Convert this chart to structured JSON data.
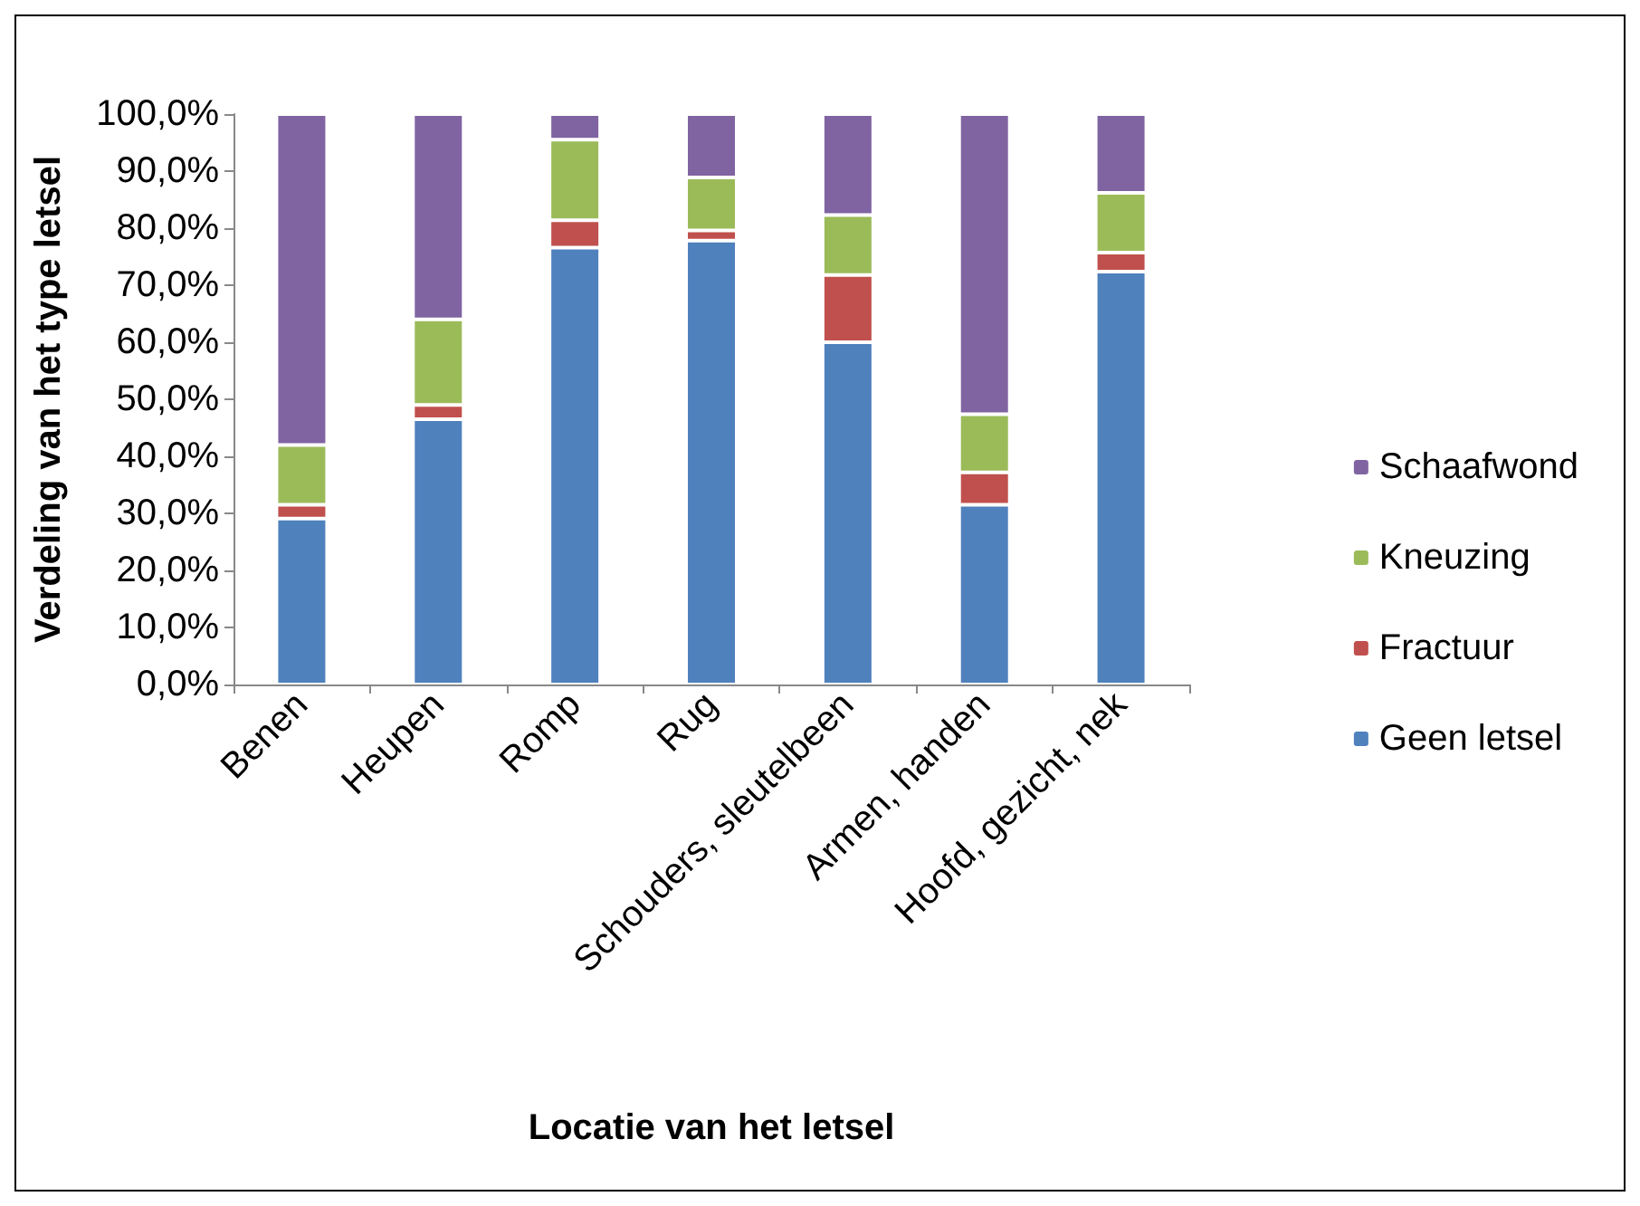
{
  "chart_data": {
    "type": "bar",
    "stacked": true,
    "xlabel": "Locatie van het letsel",
    "ylabel": "Verdeling van het type letsel",
    "categories": [
      "Benen",
      "Heupen",
      "Romp",
      "Rug",
      "Schouders, sleutelbeen",
      "Armen, handen",
      "Hoofd, gezicht, nek"
    ],
    "series": [
      {
        "name": "Geen letsel",
        "color": "#4f81bd",
        "values": [
          29.1,
          46.5,
          76.6,
          77.8,
          60,
          31.5,
          72.4
        ]
      },
      {
        "name": "Fractuur",
        "color": "#c0504d",
        "values": [
          2.4,
          2.5,
          4.8,
          1.8,
          11.8,
          5.7,
          3.3
        ]
      },
      {
        "name": "Kneuzing",
        "color": "#9bbb59",
        "values": [
          10.5,
          15,
          14.1,
          9.3,
          10.5,
          10.2,
          10.5
        ]
      },
      {
        "name": "Schaafwond",
        "color": "#8064a2",
        "values": [
          58,
          36,
          4.5,
          11.1,
          17.7,
          52.6,
          13.8
        ]
      }
    ],
    "ylim": [
      0,
      100
    ],
    "yticks": [
      {
        "value": 0,
        "label": "0,0%"
      },
      {
        "value": 10,
        "label": "10,0%"
      },
      {
        "value": 20,
        "label": "20,0%"
      },
      {
        "value": 30,
        "label": "30,0%"
      },
      {
        "value": 40,
        "label": "40,0%"
      },
      {
        "value": 50,
        "label": "50,0%"
      },
      {
        "value": 60,
        "label": "60,0%"
      },
      {
        "value": 70,
        "label": "70,0%"
      },
      {
        "value": 80,
        "label": "80,0%"
      },
      {
        "value": 90,
        "label": "90,0%"
      },
      {
        "value": 100,
        "label": "100,0%"
      }
    ],
    "grid": false,
    "legend": "right"
  }
}
